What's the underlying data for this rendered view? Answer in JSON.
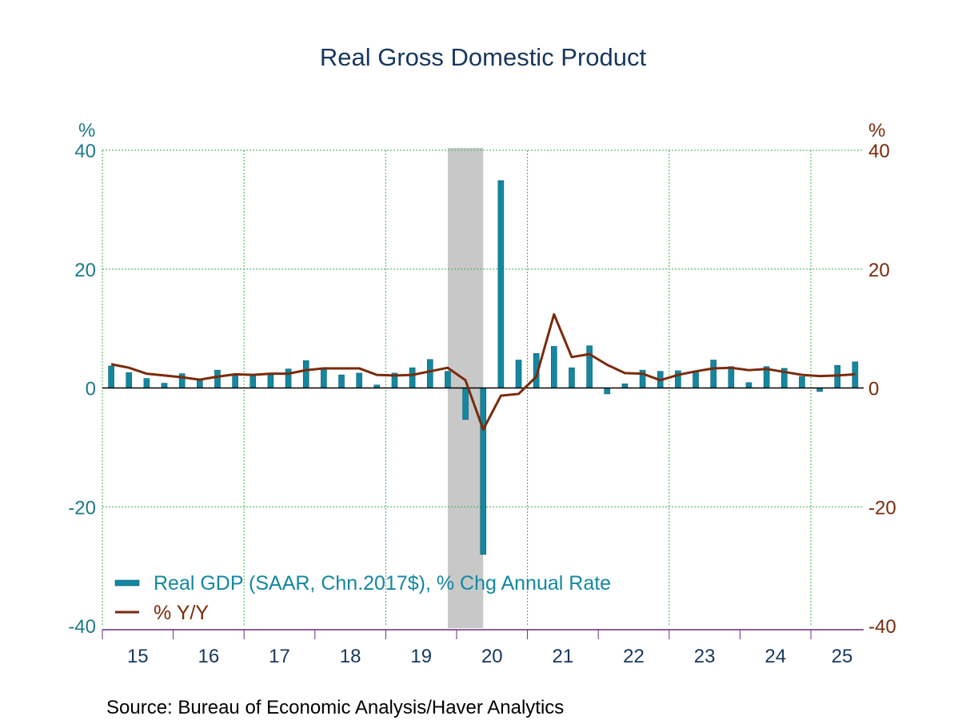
{
  "chart_data": {
    "type": "bar+line",
    "title": "Real Gross Domestic Product",
    "source": "Source:  Bureau of Economic Analysis/Haver Analytics",
    "left_axis": {
      "unit": "%",
      "ylim": [
        -40,
        40
      ],
      "ticks": [
        "40",
        "20",
        "0",
        "-20",
        "-40"
      ],
      "color": "#1b7a8a"
    },
    "right_axis": {
      "unit": "%",
      "ylim": [
        -40,
        40
      ],
      "ticks": [
        "40",
        "20",
        "0",
        "-20",
        "-40"
      ],
      "color": "#7a2a0a"
    },
    "x_tick_labels": [
      "15",
      "16",
      "17",
      "18",
      "19",
      "20",
      "21",
      "22",
      "23",
      "24",
      "25"
    ],
    "x_start": "2015Q1",
    "grid": true,
    "recession_shading": [
      "2020Q1",
      "2020Q2"
    ],
    "legend_position": "bottom-left",
    "series": [
      {
        "name": "Real GDP (SAAR, Chn.2017$), % Chg Annual Rate",
        "type": "bar",
        "color": "#1487a0",
        "values": [
          3.7,
          2.6,
          1.6,
          0.8,
          2.4,
          1.3,
          3.0,
          2.2,
          2.1,
          2.2,
          3.2,
          4.6,
          3.2,
          2.2,
          2.5,
          0.5,
          2.5,
          3.4,
          4.8,
          2.8,
          -5.3,
          -28.0,
          34.9,
          4.7,
          5.8,
          7.0,
          3.4,
          7.1,
          -1.0,
          0.7,
          3.0,
          2.8,
          2.9,
          2.7,
          4.7,
          3.6,
          0.9,
          3.6,
          3.3,
          1.9,
          -0.6,
          3.8,
          4.4
        ]
      },
      {
        "name": "% Y/Y",
        "type": "line",
        "color": "#7a2a0a",
        "values": [
          4.0,
          3.4,
          2.4,
          2.1,
          1.8,
          1.4,
          1.9,
          2.3,
          2.2,
          2.4,
          2.4,
          3.0,
          3.3,
          3.3,
          3.3,
          2.2,
          2.1,
          2.2,
          2.8,
          3.4,
          1.3,
          -7.0,
          -1.3,
          -1.0,
          1.9,
          12.4,
          5.2,
          5.7,
          3.9,
          2.5,
          2.4,
          1.3,
          2.2,
          2.8,
          3.3,
          3.4,
          3.0,
          3.2,
          2.7,
          2.2,
          2.0,
          2.1,
          2.3
        ]
      }
    ]
  }
}
